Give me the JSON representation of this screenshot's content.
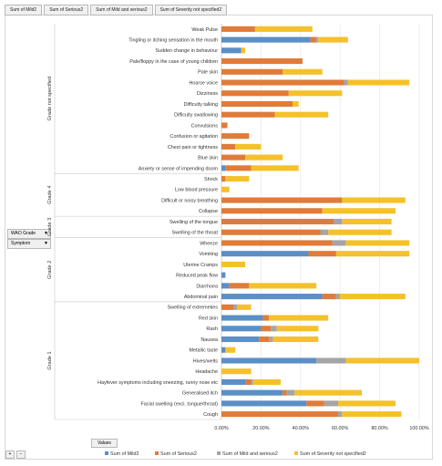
{
  "field_buttons": [
    "Sum of Mild2",
    "Sum of Serious2",
    "Sum of Mild and serious2",
    "Sum of Severity not specified2"
  ],
  "row_fields": [
    {
      "label": "WAO Grade"
    },
    {
      "label": "Symptom"
    }
  ],
  "values_button": "Values",
  "zoom_buttons": [
    "+",
    "−"
  ],
  "chart_data": {
    "type": "bar",
    "orientation": "horizontal",
    "stacked": true,
    "title": "",
    "xlabel": "",
    "ylabel": "",
    "xlim": [
      0,
      100
    ],
    "x_ticks": [
      "0.00%",
      "20.00%",
      "40.00%",
      "60.00%",
      "80.00%",
      "100.00%"
    ],
    "grid": true,
    "legend_position": "bottom",
    "colors": [
      "#5b8fc6",
      "#e07b39",
      "#a5a5a5",
      "#f5c12a"
    ],
    "series_names": [
      "Sum of Mild2",
      "Sum of Serious2",
      "Sum of Mild and serious2",
      "Sum of Severity not specified2"
    ],
    "groups": [
      {
        "name": "Grade not specified",
        "rows": [
          {
            "label": "Weak Pulse",
            "values": [
              0,
              17,
              0,
              29
            ]
          },
          {
            "label": "Tingling or itching sensation in the mouth",
            "values": [
              45,
              3,
              1,
              15
            ]
          },
          {
            "label": "Sudden change in behaviour",
            "values": [
              10,
              0,
              0,
              2
            ]
          },
          {
            "label": "Pale/floppy in the case of young children",
            "values": [
              0,
              41,
              0,
              0
            ]
          },
          {
            "label": "Pale skin",
            "values": [
              0,
              31,
              0,
              20
            ]
          },
          {
            "label": "Hoarse voice",
            "values": [
              0,
              62,
              2,
              31
            ]
          },
          {
            "label": "Dizziness",
            "values": [
              0,
              34,
              0,
              27
            ]
          },
          {
            "label": "Difficulty talking",
            "values": [
              0,
              36,
              0,
              3
            ]
          },
          {
            "label": "Difficulty swallowing",
            "values": [
              0,
              27,
              0,
              27
            ]
          },
          {
            "label": "Convulsions",
            "values": [
              0,
              3,
              0,
              0
            ]
          },
          {
            "label": "Confusion or agitation",
            "values": [
              0,
              14,
              0,
              0
            ]
          },
          {
            "label": "Chest pain or tightness",
            "values": [
              0,
              7,
              0,
              13
            ]
          },
          {
            "label": "Blue skin",
            "values": [
              0,
              12,
              0,
              19
            ]
          },
          {
            "label": "Anxiety or sense of impending doom",
            "values": [
              2,
              13,
              0,
              24
            ]
          }
        ]
      },
      {
        "name": "Grade 4",
        "rows": [
          {
            "label": "Shock",
            "values": [
              0,
              2,
              0,
              12
            ]
          },
          {
            "label": "Low blood pressure",
            "values": [
              0,
              0,
              0,
              4
            ]
          },
          {
            "label": "Difficult or noisy breathing",
            "values": [
              0,
              61,
              0,
              32
            ]
          },
          {
            "label": "Collapse",
            "values": [
              0,
              51,
              0,
              37
            ]
          }
        ]
      },
      {
        "name": "Grade 3",
        "rows": [
          {
            "label": "Swelling of the tongue",
            "values": [
              0,
              57,
              4,
              25
            ]
          },
          {
            "label": "Swelling of the throat",
            "values": [
              0,
              50,
              4,
              32
            ]
          }
        ]
      },
      {
        "name": "Grade 2",
        "rows": [
          {
            "label": "Wheeze",
            "values": [
              0,
              56,
              7,
              32
            ]
          },
          {
            "label": "Vomiting",
            "values": [
              44,
              14,
              0,
              37
            ]
          },
          {
            "label": "Uterine Cramps",
            "values": [
              0,
              0,
              0,
              12
            ]
          },
          {
            "label": "Reduced peak flow",
            "values": [
              2,
              0,
              0,
              0
            ]
          },
          {
            "label": "Diarrhoea",
            "values": [
              4,
              10,
              0,
              34
            ]
          },
          {
            "label": "Abdominal pain",
            "values": [
              51,
              7,
              2,
              33
            ]
          }
        ]
      },
      {
        "name": "Grade 1",
        "rows": [
          {
            "label": "Swelling of extremeties",
            "values": [
              0,
              6,
              2,
              7
            ]
          },
          {
            "label": "Red skin",
            "values": [
              21,
              3,
              0,
              30
            ]
          },
          {
            "label": "Rash",
            "values": [
              20,
              5,
              3,
              21
            ]
          },
          {
            "label": "Nausea",
            "values": [
              19,
              5,
              2,
              23
            ]
          },
          {
            "label": "Metallic taste",
            "values": [
              2,
              0,
              0,
              5
            ]
          },
          {
            "label": "Hives/welts",
            "values": [
              48,
              0,
              15,
              37
            ]
          },
          {
            "label": "Headache",
            "values": [
              0,
              0,
              0,
              15
            ]
          },
          {
            "label": "Hayfever symptoms including sneezing, runny nose etc",
            "values": [
              12,
              3,
              1,
              14
            ]
          },
          {
            "label": "Generalised itch",
            "values": [
              31,
              2,
              4,
              34
            ]
          },
          {
            "label": "Facial swelling (excl. tongue/throat)",
            "values": [
              43,
              9,
              7,
              29
            ]
          },
          {
            "label": "Cough",
            "values": [
              0,
              59,
              2,
              30
            ]
          }
        ]
      }
    ]
  }
}
